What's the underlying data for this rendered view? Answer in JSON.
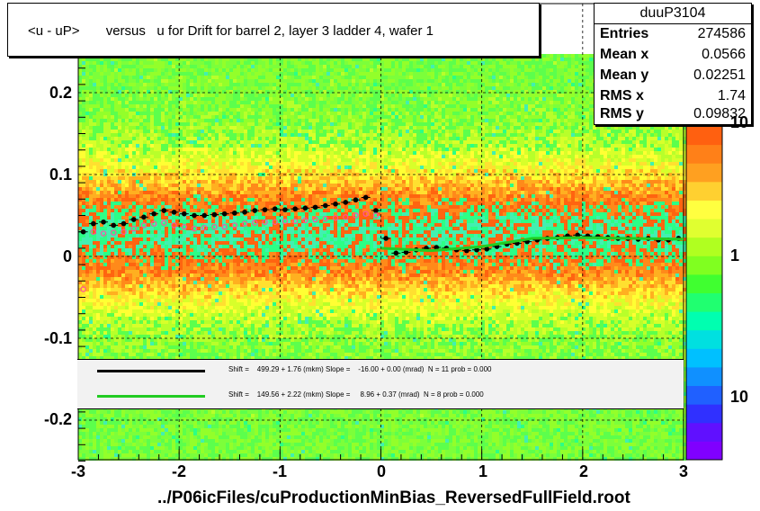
{
  "title": "<u - uP>       versus   u for Drift for barrel 2, layer 3 ladder 4, wafer 1",
  "stats": {
    "name": "duuP3104",
    "rows": [
      {
        "label": "Entries",
        "value": "274586"
      },
      {
        "label": "Mean x",
        "value": "0.0566"
      },
      {
        "label": "Mean y",
        "value": "0.02251"
      },
      {
        "label": "RMS x",
        "value": "1.74"
      },
      {
        "label": "RMS y",
        "value": "0.09832"
      }
    ]
  },
  "legend": [
    {
      "color": "#000000",
      "text": "Shift =    499.29 + 1.76 (mkm) Slope =    -16.00 + 0.00 (mrad)  N = 11 prob = 0.000"
    },
    {
      "color": "#22cc22",
      "text": "Shift =    149.56 + 2.22 (mkm) Slope =     8.96 + 0.37 (mrad)  N = 8 prob = 0.000"
    }
  ],
  "x_axis_label": "../P06icFiles/cuProductionMinBias_ReversedFullField.root",
  "chart_data": {
    "type": "heatmap",
    "xlim": [
      -3,
      3
    ],
    "ylim": [
      -0.25,
      0.25
    ],
    "x_ticks": [
      "-3",
      "-2",
      "-1",
      "0",
      "1",
      "2",
      "3"
    ],
    "y_ticks": [
      "-0.2",
      "-0.1",
      "0",
      "0.1",
      "0.2"
    ],
    "z_ticks": [
      "10",
      "1",
      "10"
    ],
    "grid": true,
    "series": [
      {
        "name": "profile_black",
        "color": "#000000",
        "x": [
          -2.95,
          -2.85,
          -2.75,
          -2.65,
          -2.55,
          -2.45,
          -2.35,
          -2.25,
          -2.15,
          -2.05,
          -1.95,
          -1.85,
          -1.75,
          -1.65,
          -1.55,
          -1.45,
          -1.35,
          -1.25,
          -1.15,
          -1.05,
          -0.95,
          -0.85,
          -0.75,
          -0.65,
          -0.55,
          -0.45,
          -0.35,
          -0.25,
          -0.15,
          -0.05,
          0.05,
          0.15,
          0.25,
          0.35,
          0.45,
          0.55,
          0.65,
          0.75,
          0.85,
          0.95,
          1.05,
          1.15,
          1.25,
          1.35,
          1.45,
          1.55,
          1.65,
          1.75,
          1.85,
          1.95,
          2.05,
          2.15,
          2.25,
          2.35,
          2.45,
          2.55,
          2.65,
          2.75,
          2.85,
          2.95
        ],
        "y": [
          0.03,
          0.04,
          0.042,
          0.038,
          0.04,
          0.045,
          0.048,
          0.052,
          0.056,
          0.054,
          0.052,
          0.05,
          0.05,
          0.051,
          0.052,
          0.053,
          0.054,
          0.056,
          0.057,
          0.058,
          0.057,
          0.058,
          0.059,
          0.06,
          0.062,
          0.064,
          0.066,
          0.069,
          0.072,
          0.056,
          0.022,
          0.004,
          0.005,
          0.008,
          0.01,
          0.011,
          0.01,
          0.008,
          0.007,
          0.008,
          0.009,
          0.012,
          0.015,
          0.016,
          0.018,
          0.02,
          0.022,
          0.023,
          0.025,
          0.026,
          0.025,
          0.024,
          0.023,
          0.022,
          0.022,
          0.021,
          0.022,
          0.02,
          0.02,
          0.022
        ]
      },
      {
        "name": "profile_pink",
        "color": "#ff4fa0",
        "x": [
          -2.95,
          -2.85,
          -2.75,
          -2.65,
          -2.55,
          -2.45,
          -2.35,
          -2.25,
          -2.15,
          -2.05,
          -1.95,
          -1.85,
          -1.75,
          -1.65,
          -1.55,
          -1.45,
          -1.35,
          -1.25,
          -1.15,
          -1.05,
          -0.95,
          -0.85,
          -0.75,
          -0.65,
          -0.55,
          -0.45,
          -0.35,
          -0.25,
          -0.15,
          -0.05
        ],
        "y": [
          -0.04,
          0.03,
          0.028,
          0.029,
          0.03,
          0.034,
          0.038,
          0.04,
          0.041,
          0.038,
          0.036,
          0.034,
          0.035,
          0.036,
          0.036,
          0.038,
          0.04,
          0.041,
          0.042,
          0.042,
          0.043,
          0.043,
          0.044,
          0.045,
          0.046,
          0.047,
          0.048,
          0.05,
          0.052,
          0.05
        ]
      },
      {
        "name": "fit_green",
        "color": "#22cc22",
        "x": [
          0.0,
          0.5,
          1.0,
          1.5,
          2.0,
          2.5,
          3.0
        ],
        "y": [
          0.01,
          0.007,
          0.012,
          0.022,
          0.023,
          0.022,
          0.021
        ]
      }
    ]
  }
}
